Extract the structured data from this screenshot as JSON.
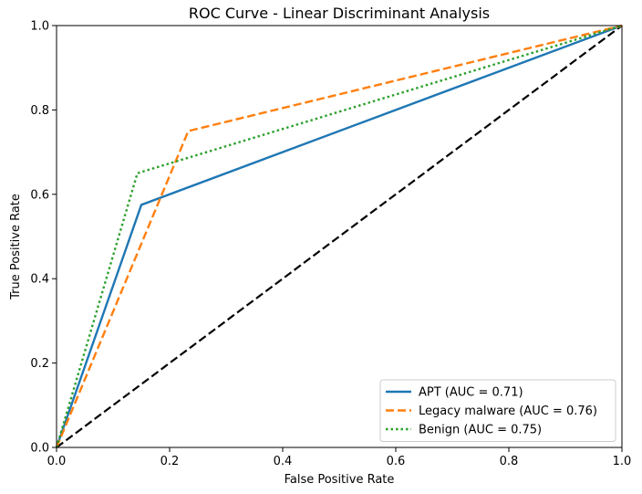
{
  "chart_data": {
    "type": "line",
    "title": "ROC Curve - Linear Discriminant Analysis",
    "xlabel": "False Positive Rate",
    "ylabel": "True Positive Rate",
    "xlim": [
      0.0,
      1.0
    ],
    "ylim": [
      0.0,
      1.0
    ],
    "xticks": [
      "0.0",
      "0.2",
      "0.4",
      "0.6",
      "0.8",
      "1.0"
    ],
    "yticks": [
      "0.0",
      "0.2",
      "0.4",
      "0.6",
      "0.8",
      "1.0"
    ],
    "grid": false,
    "legend_position": "bottom-right",
    "series": [
      {
        "name": "APT (AUC = 0.71)",
        "color": "#1f77b4",
        "style": "solid",
        "x": [
          0.0,
          0.15,
          1.0
        ],
        "y": [
          0.0,
          0.575,
          1.0
        ]
      },
      {
        "name": "Legacy malware (AUC = 0.76)",
        "color": "#ff7f0e",
        "style": "dashed",
        "x": [
          0.0,
          0.233,
          1.0
        ],
        "y": [
          0.0,
          0.75,
          1.0
        ]
      },
      {
        "name": "Benign (AUC = 0.75)",
        "color": "#2ca02c",
        "style": "dotted",
        "x": [
          0.0,
          0.143,
          1.0
        ],
        "y": [
          0.0,
          0.65,
          1.0
        ]
      }
    ],
    "reference_line": {
      "color": "#000000",
      "style": "dashed",
      "x": [
        0.0,
        1.0
      ],
      "y": [
        0.0,
        1.0
      ]
    }
  }
}
